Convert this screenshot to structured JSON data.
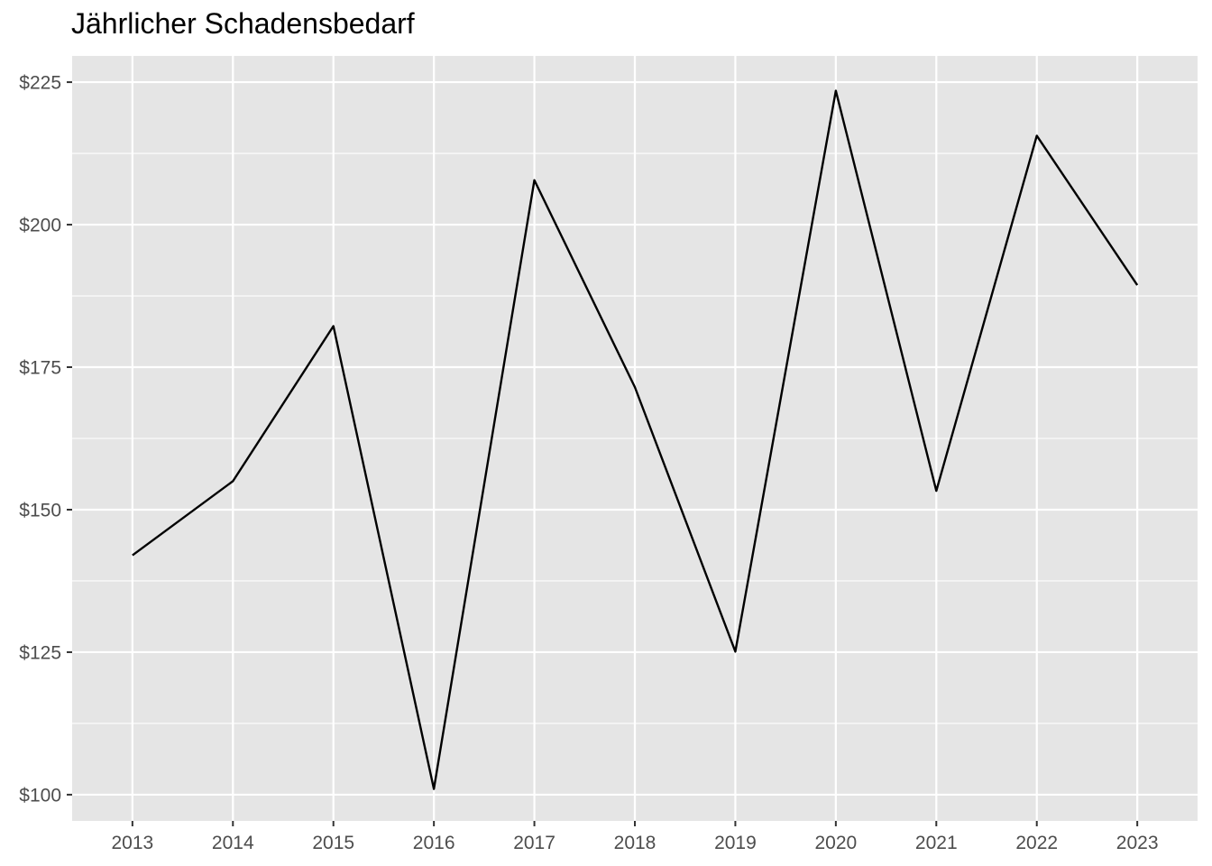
{
  "chart_data": {
    "type": "line",
    "title": "Jährlicher Schadensbedarf",
    "xlabel": "",
    "ylabel": "",
    "x": [
      2013,
      2014,
      2015,
      2016,
      2017,
      2018,
      2019,
      2020,
      2021,
      2022,
      2023
    ],
    "x_tick_labels": [
      "2013",
      "2014",
      "2015",
      "2016",
      "2017",
      "2018",
      "2019",
      "2020",
      "2021",
      "2022",
      "2023"
    ],
    "series": [
      {
        "values": [
          142,
          155,
          182.2,
          101,
          207.8,
          171.5,
          125.1,
          223.5,
          153.3,
          215.6,
          189.4
        ]
      }
    ],
    "y_ticks": [
      100,
      125,
      150,
      175,
      200,
      225
    ],
    "y_tick_labels": [
      "$100",
      "$125",
      "$150",
      "$175",
      "$200",
      "$225"
    ],
    "xlim": [
      2012.4,
      2023.6
    ],
    "ylim": [
      95.4,
      229.6
    ],
    "grid": true,
    "colors": {
      "panel_background": "#e5e5e5",
      "grid_line": "#ffffff",
      "series_line": "#000000",
      "tick_label": "#4d4d4d",
      "tick_mark": "#333333"
    }
  }
}
